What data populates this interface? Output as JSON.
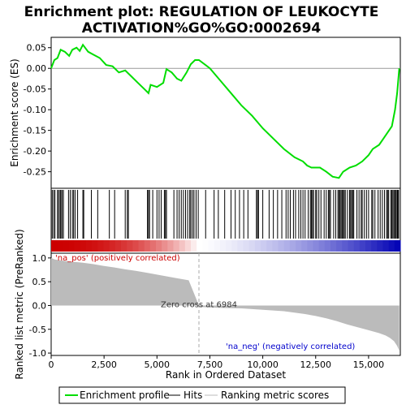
{
  "chart_data": {
    "type": "line",
    "title_line1": "Enrichment plot: REGULATION OF LEUKOCYTE",
    "title_line2": "ACTIVATION%GO%GO:0002694",
    "xlabel": "Rank in Ordered Dataset",
    "ylabel_top": "Enrichment score (ES)",
    "ylabel_bottom": "Ranked list metric (PreRanked)",
    "xlim": [
      0,
      16500
    ],
    "xticks": [
      0,
      2500,
      5000,
      7500,
      10000,
      12500,
      15000
    ],
    "xtick_labels": [
      "0",
      "2,500",
      "5,000",
      "7,500",
      "10,000",
      "12,500",
      "15,000"
    ],
    "es_ylim": [
      -0.29,
      0.075
    ],
    "es_yticks": [
      0.05,
      0.0,
      -0.05,
      -0.1,
      -0.15,
      -0.2,
      -0.25
    ],
    "es_ytick_labels": [
      "0.05",
      "0.00",
      "-0.05",
      "-0.10",
      "-0.15",
      "-0.20",
      "-0.25"
    ],
    "metric_ylim": [
      -1.05,
      1.1
    ],
    "metric_yticks": [
      1.0,
      0.5,
      0.0,
      -0.5,
      -1.0
    ],
    "metric_ytick_labels": [
      "1.0",
      "0.5",
      "0.0",
      "-0.5",
      "-1.0"
    ],
    "zero_cross": 6984,
    "zero_cross_label": "Zero cross at 6984",
    "pos_label": "'na_pos' (positively correlated)",
    "neg_label": "'na_neg' (negatively correlated)",
    "es_curve": [
      [
        0,
        0.0
      ],
      [
        150,
        0.02
      ],
      [
        300,
        0.025
      ],
      [
        450,
        0.045
      ],
      [
        650,
        0.04
      ],
      [
        850,
        0.03
      ],
      [
        1000,
        0.045
      ],
      [
        1200,
        0.05
      ],
      [
        1350,
        0.042
      ],
      [
        1500,
        0.057
      ],
      [
        1750,
        0.04
      ],
      [
        2000,
        0.033
      ],
      [
        2300,
        0.025
      ],
      [
        2600,
        0.008
      ],
      [
        2900,
        0.005
      ],
      [
        3200,
        -0.01
      ],
      [
        3500,
        -0.005
      ],
      [
        3800,
        -0.02
      ],
      [
        4100,
        -0.035
      ],
      [
        4400,
        -0.05
      ],
      [
        4600,
        -0.06
      ],
      [
        4700,
        -0.04
      ],
      [
        5000,
        -0.045
      ],
      [
        5300,
        -0.035
      ],
      [
        5450,
        -0.002
      ],
      [
        5700,
        -0.01
      ],
      [
        5950,
        -0.025
      ],
      [
        6150,
        -0.03
      ],
      [
        6400,
        -0.01
      ],
      [
        6600,
        0.01
      ],
      [
        6800,
        0.02
      ],
      [
        6984,
        0.02
      ],
      [
        7500,
        0.0
      ],
      [
        8000,
        -0.03
      ],
      [
        8500,
        -0.06
      ],
      [
        9000,
        -0.09
      ],
      [
        9500,
        -0.115
      ],
      [
        10000,
        -0.145
      ],
      [
        10500,
        -0.17
      ],
      [
        11000,
        -0.195
      ],
      [
        11500,
        -0.215
      ],
      [
        11900,
        -0.225
      ],
      [
        12100,
        -0.235
      ],
      [
        12300,
        -0.24
      ],
      [
        12700,
        -0.24
      ],
      [
        13000,
        -0.25
      ],
      [
        13300,
        -0.262
      ],
      [
        13600,
        -0.265
      ],
      [
        13800,
        -0.25
      ],
      [
        14100,
        -0.24
      ],
      [
        14400,
        -0.235
      ],
      [
        14700,
        -0.225
      ],
      [
        15000,
        -0.21
      ],
      [
        15200,
        -0.195
      ],
      [
        15500,
        -0.185
      ],
      [
        15700,
        -0.17
      ],
      [
        15900,
        -0.155
      ],
      [
        16100,
        -0.14
      ],
      [
        16250,
        -0.1
      ],
      [
        16350,
        -0.06
      ],
      [
        16450,
        0.0
      ]
    ],
    "hits": [
      50,
      120,
      180,
      300,
      350,
      420,
      460,
      520,
      580,
      820,
      900,
      1000,
      1060,
      1130,
      1250,
      1500,
      1540,
      1900,
      2200,
      2750,
      3000,
      3500,
      3600,
      3650,
      4550,
      4600,
      4650,
      4800,
      5000,
      5100,
      5200,
      5350,
      5400,
      5450,
      5800,
      5950,
      6050,
      6150,
      6250,
      6350,
      6450,
      6550,
      6600,
      6680,
      6750,
      6850,
      6950,
      7300,
      7700,
      7900,
      8200,
      8500,
      8700,
      8900,
      9100,
      9300,
      9700,
      9750,
      9800,
      10000,
      10300,
      10500,
      10700,
      10900,
      11100,
      11200,
      11300,
      11450,
      11550,
      11700,
      11800,
      11900,
      12000,
      12150,
      12250,
      12300,
      12350,
      12400,
      12500,
      12550,
      12650,
      12750,
      12900,
      13000,
      13100,
      13150,
      13200,
      13350,
      13450,
      13550,
      13600,
      13650,
      13700,
      13750,
      13800,
      13850,
      13900,
      14000,
      14100,
      14150,
      14200,
      14250,
      14300,
      14450,
      14550,
      14650,
      14700,
      14800,
      14900,
      15000,
      15150,
      15200,
      15300,
      15450,
      15550,
      15650,
      15750,
      15850,
      15900,
      15950,
      16050,
      16100,
      16150,
      16200,
      16250,
      16300,
      16350,
      16380,
      16420
    ],
    "metric_curve": [
      [
        0,
        1.0
      ],
      [
        150,
        0.97
      ],
      [
        400,
        0.95
      ],
      [
        1000,
        0.92
      ],
      [
        1500,
        0.9
      ],
      [
        2000,
        0.87
      ],
      [
        2500,
        0.83
      ],
      [
        3000,
        0.8
      ],
      [
        3500,
        0.76
      ],
      [
        4000,
        0.73
      ],
      [
        4500,
        0.69
      ],
      [
        5000,
        0.65
      ],
      [
        5500,
        0.61
      ],
      [
        6000,
        0.57
      ],
      [
        6500,
        0.53
      ],
      [
        6984,
        0.0
      ],
      [
        7000,
        -0.03
      ],
      [
        8000,
        -0.05
      ],
      [
        9000,
        -0.06
      ],
      [
        10000,
        -0.09
      ],
      [
        11000,
        -0.12
      ],
      [
        12000,
        -0.18
      ],
      [
        12500,
        -0.22
      ],
      [
        13000,
        -0.27
      ],
      [
        13500,
        -0.33
      ],
      [
        14000,
        -0.4
      ],
      [
        14500,
        -0.46
      ],
      [
        15000,
        -0.52
      ],
      [
        15500,
        -0.58
      ],
      [
        15800,
        -0.63
      ],
      [
        16000,
        -0.68
      ],
      [
        16200,
        -0.75
      ],
      [
        16350,
        -0.85
      ],
      [
        16450,
        -0.95
      ]
    ],
    "legend": [
      "Enrichment profile",
      "Hits",
      "Ranking metric scores"
    ],
    "colors": {
      "es_line": "#00dd00",
      "hit_line": "#000000",
      "metric_fill": "#bbbbbb",
      "pos": "#cc0000",
      "neg": "#0000bb",
      "pos_label": "#cc0000",
      "neg_label": "#0000cc",
      "zero_line": "#aaaaaa"
    }
  }
}
